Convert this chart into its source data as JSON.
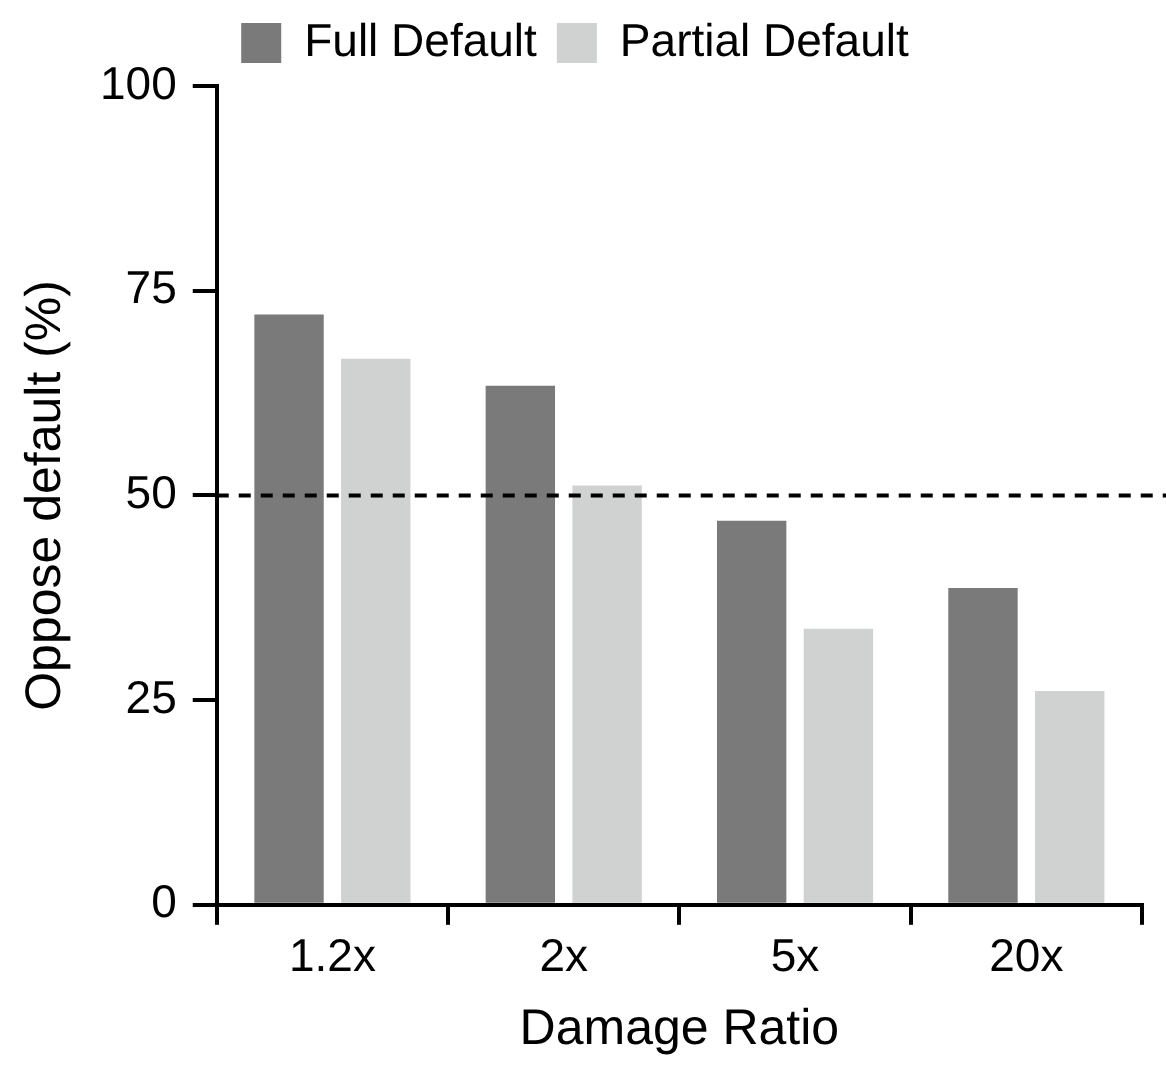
{
  "chart_data": {
    "type": "bar",
    "xlabel": "Damage Ratio",
    "ylabel": "Oppose default (%)",
    "categories": [
      "1.2x",
      "2x",
      "5x",
      "20x"
    ],
    "series": [
      {
        "name": "Full Default",
        "color": "#7a7a7a",
        "values": [
          72.1,
          63.4,
          46.9,
          38.7
        ]
      },
      {
        "name": "Partial Default",
        "color": "#d0d1d1",
        "values": [
          66.7,
          51.2,
          33.7,
          26.1
        ]
      }
    ],
    "ylim": [
      0,
      100
    ],
    "yticks": [
      0,
      25,
      50,
      75,
      100
    ],
    "grid": false,
    "legend": "top",
    "ref_lines": [
      {
        "axis": "y",
        "value": 50,
        "line_style": "dashed",
        "color": "#000000"
      }
    ]
  }
}
